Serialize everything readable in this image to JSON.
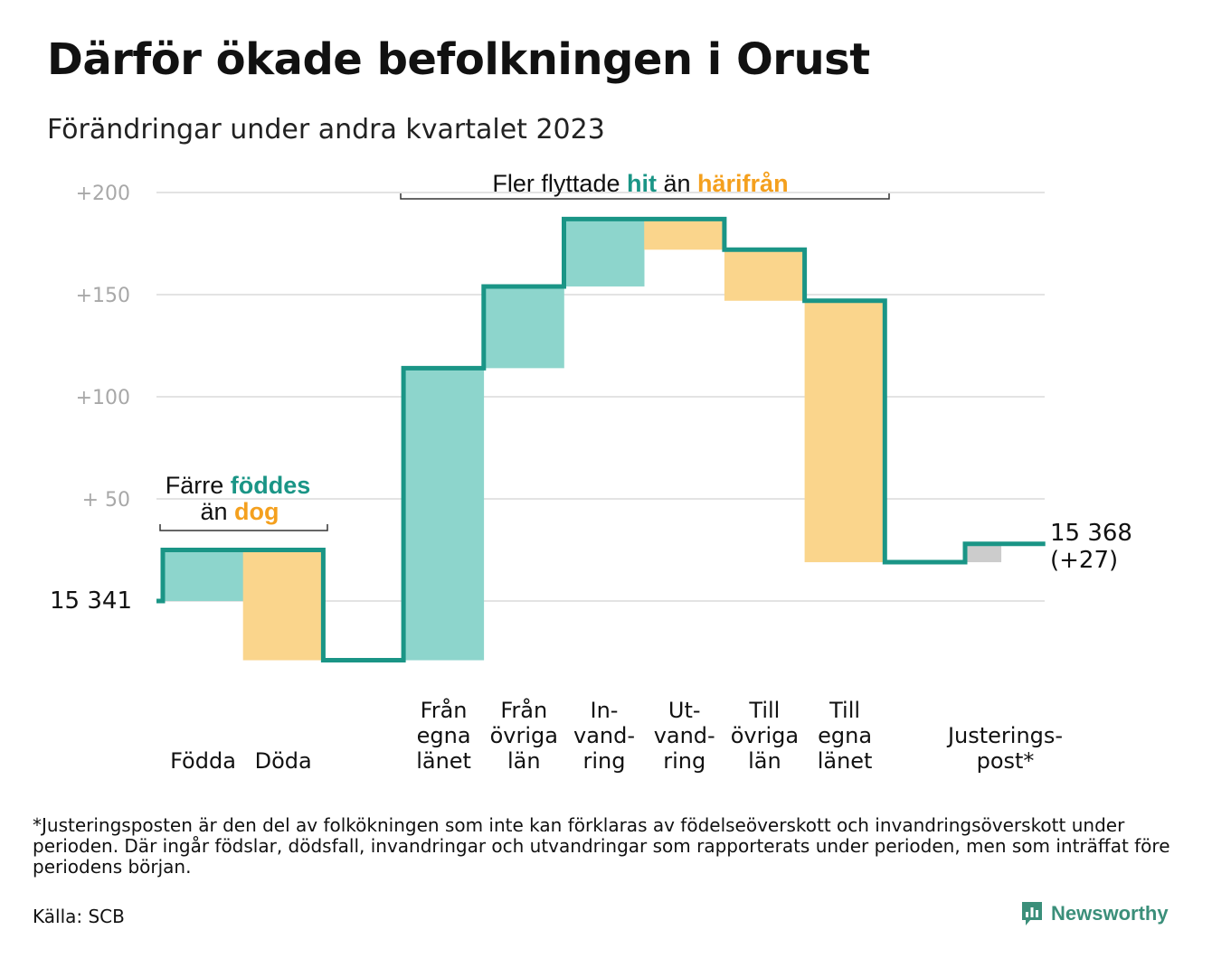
{
  "title": "Därför ökade befolkningen i Orust",
  "subtitle": "Förändringar under andra kvartalet 2023",
  "footnote": "*Justeringsposten är den del av folkökningen som inte kan förklaras av födelseöverskott och invandringsöverskott under perioden. Där ingår födslar, dödsfall, invandringar och utvandringar som rapporterats under perioden, men som inträffat före periodens början.",
  "source": "Källa: SCB",
  "brand": "Newsworthy",
  "colors": {
    "line": "#1a9586",
    "increase": "#8dd5cc",
    "decrease": "#fad58c",
    "adjustment": "#cccccc",
    "grid": "#e3e3e3",
    "axis_text": "#a8a8a8",
    "accent_teal": "#1a9586",
    "accent_orange": "#f4a01e"
  },
  "chart_data": {
    "type": "bar",
    "subtype": "waterfall",
    "ylim": [
      -30,
      212
    ],
    "y_ticks": [
      {
        "value": 200,
        "label": "+200"
      },
      {
        "value": 150,
        "label": "+150"
      },
      {
        "value": 100,
        "label": "+100"
      },
      {
        "value": 50,
        "label": "+  50"
      },
      {
        "value": 0,
        "label": "15  341"
      }
    ],
    "start_label": "15  341",
    "steps": [
      {
        "category": "Födda",
        "lines": [
          "Födda"
        ],
        "change": 25,
        "kind": "increase"
      },
      {
        "category": "Döda",
        "lines": [
          "Döda"
        ],
        "change": -54,
        "kind": "decrease"
      },
      {
        "category": "",
        "lines": [],
        "change": 0,
        "kind": "none"
      },
      {
        "category": "Från egna länet",
        "lines": [
          "Från",
          "egna",
          "länet"
        ],
        "change": 143,
        "kind": "increase"
      },
      {
        "category": "Från övriga län",
        "lines": [
          "Från",
          "övriga",
          "län"
        ],
        "change": 40,
        "kind": "increase"
      },
      {
        "category": "Invandring",
        "lines": [
          "In-",
          "vand-",
          "ring"
        ],
        "change": 33,
        "kind": "increase"
      },
      {
        "category": "Utvandring",
        "lines": [
          "Ut-",
          "vand-",
          "ring"
        ],
        "change": -15,
        "kind": "decrease"
      },
      {
        "category": "Till övriga län",
        "lines": [
          "Till",
          "övriga",
          "län"
        ],
        "change": -25,
        "kind": "decrease"
      },
      {
        "category": "Till egna länet",
        "lines": [
          "Till",
          "egna",
          "länet"
        ],
        "change": -128,
        "kind": "decrease"
      },
      {
        "category": "",
        "lines": [],
        "change": 0,
        "kind": "none"
      },
      {
        "category": "Justeringspost*",
        "lines": [
          "Justerings-",
          "post*"
        ],
        "change": 9,
        "kind": "adjustment"
      }
    ],
    "end_value": 27,
    "end_label": [
      "15 368",
      "(+27)"
    ],
    "annotations": {
      "births": {
        "line1": "Färre ",
        "line1_accent": "föddes",
        "line2": "än ",
        "line2_accent": "dog"
      },
      "migration": {
        "text": "Fler flyttade ",
        "accent1": "hit",
        "middle": " än ",
        "accent2": "härifrån"
      }
    }
  }
}
